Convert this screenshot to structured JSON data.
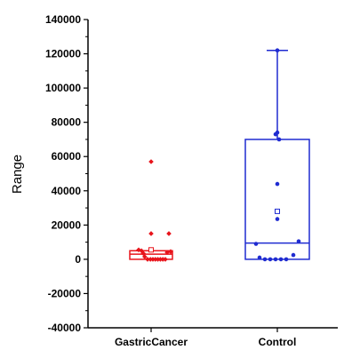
{
  "chart_data": {
    "type": "box",
    "title": "",
    "xlabel": "",
    "ylabel": "Range",
    "ylim": [
      -40000,
      140000
    ],
    "yticks": [
      -40000,
      -20000,
      0,
      20000,
      40000,
      60000,
      80000,
      100000,
      120000,
      140000
    ],
    "ytick_labels": [
      "-40000",
      "-20000",
      "0",
      "20000",
      "40000",
      "60000",
      "80000",
      "100000",
      "120000",
      "140000"
    ],
    "grid": false,
    "legend": "none",
    "categories": [
      "GastricCancer",
      "Control"
    ],
    "series": [
      {
        "category": "GastricCancer",
        "color": "#e8141b",
        "q1": 0,
        "median": 3000,
        "q3": 5000,
        "whisker_low": 0,
        "whisker_high": 5000,
        "mean": 5500,
        "points": [
          [
            -0.35,
            5500
          ],
          [
            -0.27,
            5000
          ],
          [
            -0.22,
            3500
          ],
          [
            -0.18,
            1500
          ],
          [
            -0.1,
            0
          ],
          [
            -0.02,
            0
          ],
          [
            0.05,
            0
          ],
          [
            0.12,
            0
          ],
          [
            0.19,
            0
          ],
          [
            0.26,
            0
          ],
          [
            0.33,
            0
          ],
          [
            0.4,
            0
          ],
          [
            0.0,
            57000
          ],
          [
            0.0,
            15000
          ],
          [
            0.5,
            15000
          ],
          [
            0.45,
            4000
          ],
          [
            0.55,
            4500
          ]
        ]
      },
      {
        "category": "Control",
        "color": "#1f2bd1",
        "q1": 0,
        "median": 9500,
        "q3": 70000,
        "whisker_low": 0,
        "whisker_high": 122000,
        "mean": 28000,
        "points": [
          [
            0.0,
            122000
          ],
          [
            0.0,
            74000
          ],
          [
            -0.05,
            73000
          ],
          [
            0.05,
            70000
          ],
          [
            0.0,
            44000
          ],
          [
            0.0,
            23500
          ],
          [
            -0.6,
            9000
          ],
          [
            0.6,
            10500
          ],
          [
            -0.5,
            1000
          ],
          [
            -0.35,
            0
          ],
          [
            -0.2,
            0
          ],
          [
            -0.05,
            0
          ],
          [
            0.1,
            0
          ],
          [
            0.25,
            0
          ],
          [
            0.45,
            2500
          ]
        ]
      }
    ]
  }
}
